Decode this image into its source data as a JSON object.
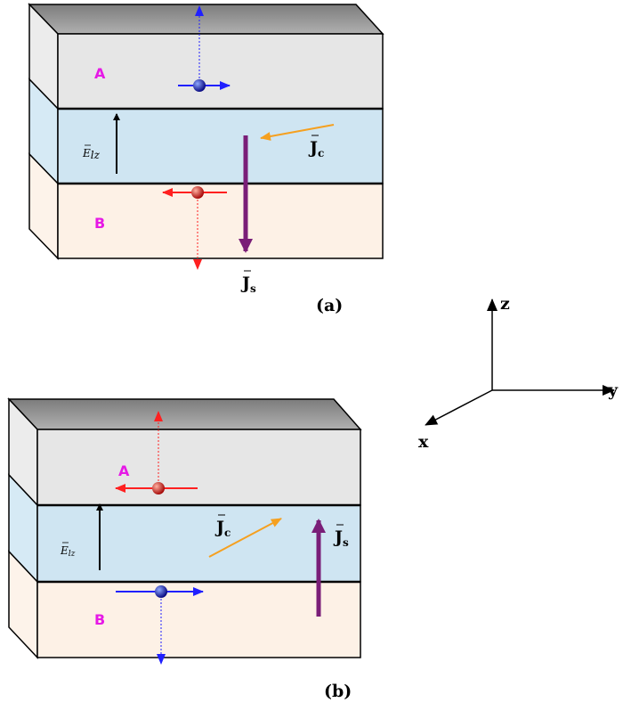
{
  "panels": [
    {
      "label": "(a)",
      "layer_top": "A",
      "layer_bottom": "B",
      "field": "E",
      "field_sub": "lz",
      "charge_current": "J",
      "charge_current_sub": "c",
      "spin_current": "J",
      "spin_current_sub": "s"
    },
    {
      "label": "(b)",
      "layer_top": "A",
      "layer_bottom": "B",
      "field": "E",
      "field_sub": "lz",
      "charge_current": "J",
      "charge_current_sub": "c",
      "spin_current": "J",
      "spin_current_sub": "s"
    }
  ],
  "axes": {
    "z": "z",
    "y": "y",
    "x": "x"
  }
}
